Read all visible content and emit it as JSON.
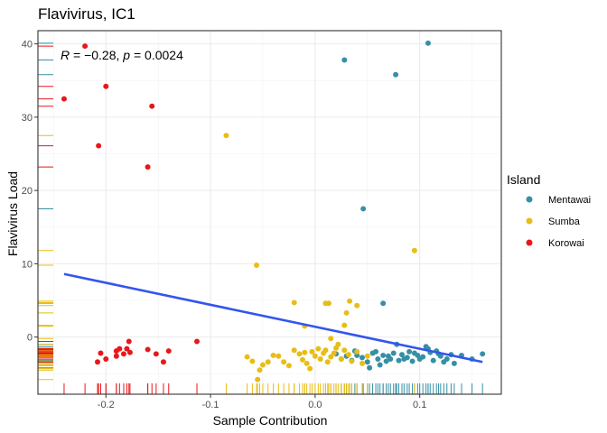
{
  "chart_data": {
    "type": "scatter",
    "title": "Flavivirus, IC1",
    "xlabel": "Sample Contribution",
    "ylabel": "Flavivirus Load",
    "xlim": [
      -0.265,
      0.178
    ],
    "ylim": [
      -7.8,
      41.8
    ],
    "xticks": [
      -0.2,
      -0.1,
      0.0,
      0.1
    ],
    "xtick_labels": [
      "-0.2",
      "-0.1",
      "0.0",
      "0.1"
    ],
    "yticks": [
      0,
      10,
      20,
      30,
      40
    ],
    "ytick_labels": [
      "0",
      "10",
      "20",
      "30",
      "40"
    ],
    "grid": true,
    "annotation": {
      "r_symbol": "R",
      "r_text": " = −0.28, ",
      "p_symbol": "p",
      "p_text": " = 0.0024"
    },
    "regression_line": {
      "x": [
        -0.24,
        0.16
      ],
      "y": [
        8.6,
        -3.4
      ],
      "color": "#3355ee"
    },
    "legend": {
      "title": "Island",
      "position": "right"
    },
    "series": [
      {
        "name": "Mentawai",
        "color": "#3690a5",
        "points": [
          [
            0.108,
            40.1
          ],
          [
            0.028,
            37.8
          ],
          [
            0.077,
            35.8
          ],
          [
            0.046,
            17.5
          ],
          [
            0.065,
            4.6
          ],
          [
            0.02,
            -2.3
          ],
          [
            0.025,
            -3.0
          ],
          [
            0.03,
            -2.6
          ],
          [
            0.035,
            -3.2
          ],
          [
            0.04,
            -2.5
          ],
          [
            0.045,
            -2.8
          ],
          [
            0.05,
            -3.4
          ],
          [
            0.052,
            -4.2
          ],
          [
            0.055,
            -2.2
          ],
          [
            0.06,
            -3.0
          ],
          [
            0.062,
            -3.8
          ],
          [
            0.065,
            -2.5
          ],
          [
            0.068,
            -3.3
          ],
          [
            0.07,
            -2.6
          ],
          [
            0.072,
            -3.0
          ],
          [
            0.075,
            -2.2
          ],
          [
            0.078,
            -1.0
          ],
          [
            0.08,
            -3.2
          ],
          [
            0.083,
            -2.4
          ],
          [
            0.085,
            -3.0
          ],
          [
            0.088,
            -2.8
          ],
          [
            0.09,
            -2.0
          ],
          [
            0.093,
            -3.3
          ],
          [
            0.095,
            -2.2
          ],
          [
            0.098,
            -2.5
          ],
          [
            0.1,
            -3.0
          ],
          [
            0.103,
            -2.7
          ],
          [
            0.106,
            -1.3
          ],
          [
            0.108,
            -1.6
          ],
          [
            0.11,
            -2.1
          ],
          [
            0.113,
            -3.2
          ],
          [
            0.116,
            -1.9
          ],
          [
            0.118,
            -2.3
          ],
          [
            0.12,
            -2.6
          ],
          [
            0.123,
            -3.4
          ],
          [
            0.126,
            -3.0
          ],
          [
            0.13,
            -2.4
          ],
          [
            0.133,
            -3.6
          ],
          [
            0.14,
            -2.5
          ],
          [
            0.15,
            -3.0
          ],
          [
            0.16,
            -2.3
          ],
          [
            0.038,
            -1.9
          ],
          [
            0.058,
            -2.0
          ]
        ]
      },
      {
        "name": "Sumba",
        "color": "#e8bd15",
        "points": [
          [
            -0.085,
            27.5
          ],
          [
            0.095,
            11.8
          ],
          [
            -0.056,
            9.8
          ],
          [
            -0.02,
            4.7
          ],
          [
            0.01,
            4.6
          ],
          [
            0.013,
            4.6
          ],
          [
            0.033,
            4.9
          ],
          [
            0.04,
            4.3
          ],
          [
            0.03,
            3.3
          ],
          [
            0.028,
            1.6
          ],
          [
            -0.01,
            1.5
          ],
          [
            -0.065,
            -2.7
          ],
          [
            -0.06,
            -3.3
          ],
          [
            -0.05,
            -3.8
          ],
          [
            -0.045,
            -3.4
          ],
          [
            -0.04,
            -2.5
          ],
          [
            -0.035,
            -2.6
          ],
          [
            -0.03,
            -3.4
          ],
          [
            -0.025,
            -3.9
          ],
          [
            -0.02,
            -1.8
          ],
          [
            -0.015,
            -2.3
          ],
          [
            -0.012,
            -3.1
          ],
          [
            -0.01,
            -2.1
          ],
          [
            -0.008,
            -3.6
          ],
          [
            -0.005,
            -4.3
          ],
          [
            -0.003,
            -2.0
          ],
          [
            0.0,
            -2.6
          ],
          [
            0.003,
            -1.6
          ],
          [
            0.005,
            -3.0
          ],
          [
            0.008,
            -2.2
          ],
          [
            0.01,
            -1.8
          ],
          [
            0.012,
            -3.4
          ],
          [
            0.015,
            -2.7
          ],
          [
            0.018,
            -2.2
          ],
          [
            0.022,
            -1.0
          ],
          [
            0.025,
            -3.0
          ],
          [
            0.028,
            -1.8
          ],
          [
            0.032,
            -2.4
          ],
          [
            0.035,
            -3.3
          ],
          [
            0.04,
            -2.0
          ],
          [
            0.045,
            -3.6
          ],
          [
            0.05,
            -2.6
          ],
          [
            -0.055,
            -5.8
          ],
          [
            -0.053,
            -4.5
          ],
          [
            0.015,
            -0.2
          ],
          [
            0.02,
            -1.5
          ]
        ]
      },
      {
        "name": "Korowai",
        "color": "#e8171b",
        "points": [
          [
            -0.22,
            39.7
          ],
          [
            -0.24,
            32.5
          ],
          [
            -0.2,
            34.2
          ],
          [
            -0.156,
            31.5
          ],
          [
            -0.207,
            26.1
          ],
          [
            -0.16,
            23.2
          ],
          [
            -0.113,
            -0.6
          ],
          [
            -0.178,
            -0.6
          ],
          [
            -0.2,
            -3.0
          ],
          [
            -0.208,
            -3.4
          ],
          [
            -0.205,
            -2.2
          ],
          [
            -0.19,
            -1.9
          ],
          [
            -0.19,
            -2.6
          ],
          [
            -0.187,
            -1.6
          ],
          [
            -0.183,
            -2.3
          ],
          [
            -0.18,
            -1.6
          ],
          [
            -0.177,
            -2.1
          ],
          [
            -0.152,
            -2.3
          ],
          [
            -0.145,
            -3.4
          ],
          [
            -0.14,
            -1.9
          ],
          [
            -0.16,
            -1.7
          ]
        ]
      }
    ]
  }
}
